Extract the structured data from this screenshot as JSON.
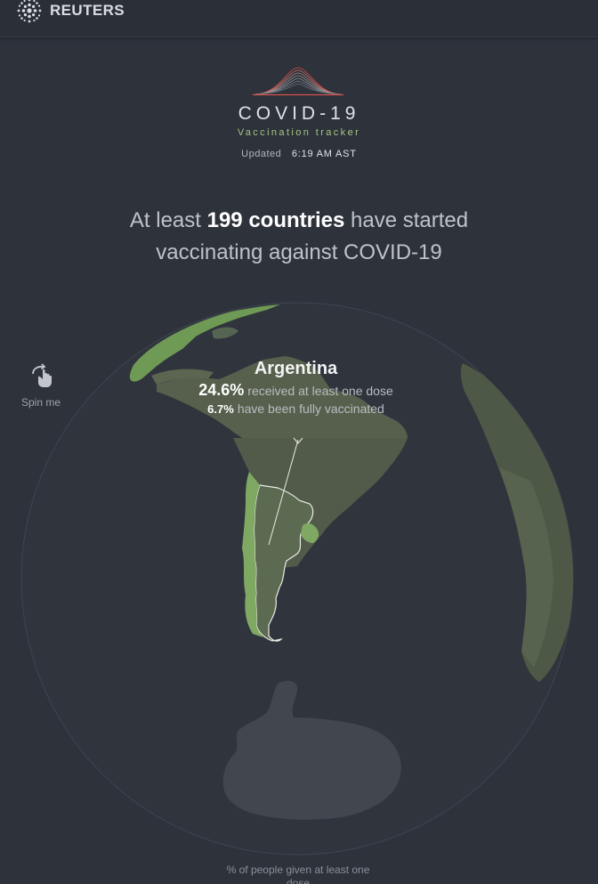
{
  "header": {
    "brand": "REUTERS",
    "logo_icon": "reuters-dot-logo-icon"
  },
  "hero": {
    "title": "COVID-19",
    "subtitle": "Vaccination tracker",
    "updated_label": "Updated",
    "updated_time": "6:19 AM AST"
  },
  "headline": {
    "prefix": "At least ",
    "highlight": "199 countries",
    "suffix": " have started vaccinating against COVID-19"
  },
  "globe": {
    "spin_label": "Spin me",
    "spin_icon": "hand-rotate-icon"
  },
  "tooltip": {
    "country": "Argentina",
    "one_dose_value": "24.6%",
    "one_dose_label": "received at least one dose",
    "full_value": "6.7%",
    "full_label": "have been fully vaccinated"
  },
  "legend": {
    "caption": "% of people given at least one dose"
  },
  "colors": {
    "background": "#2d323b",
    "land": "#4c5246",
    "highlight_green": "#7fa862",
    "argentina": "#5d6a52",
    "antarctica": "#3f444e",
    "accent_title": "#a4c77e"
  }
}
